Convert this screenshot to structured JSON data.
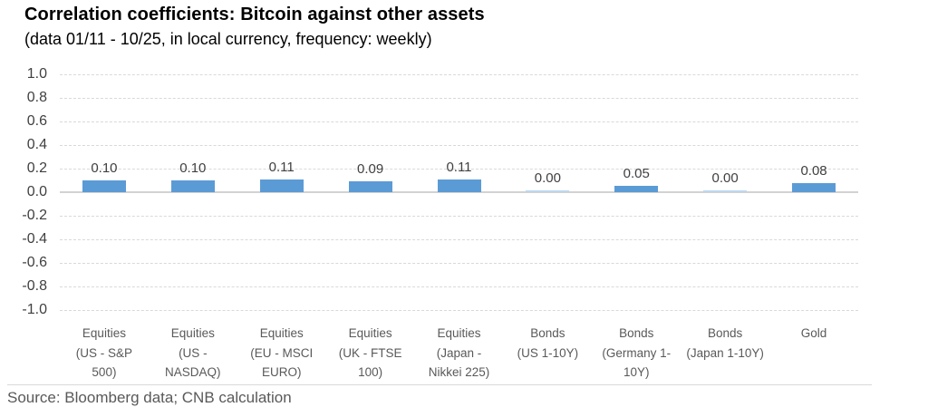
{
  "header": {
    "title": "Correlation coefficients: Bitcoin against other assets",
    "subtitle": "(data 01/11 - 10/25, in local currency, frequency: weekly)"
  },
  "chart_data": {
    "type": "bar",
    "title": "Correlation coefficients: Bitcoin against other assets",
    "subtitle": "(data 01/11 - 10/25, in local currency, frequency: weekly)",
    "categories": [
      "Equities (US - S&P 500)",
      "Equities (US - NASDAQ)",
      "Equities (EU - MSCI EURO)",
      "Equities (UK - FTSE 100)",
      "Equities (Japan - Nikkei 225)",
      "Bonds (US 1-10Y)",
      "Bonds (Germany 1-10Y)",
      "Bonds (Japan 1-10Y)",
      "Gold"
    ],
    "category_lines": [
      [
        "Equities",
        "(US - S&P",
        "500)"
      ],
      [
        "Equities",
        "(US -",
        "NASDAQ)"
      ],
      [
        "Equities",
        "(EU - MSCI",
        "EURO)"
      ],
      [
        "Equities",
        "(UK - FTSE",
        "100)"
      ],
      [
        "Equities",
        "(Japan  -",
        "Nikkei 225)"
      ],
      [
        "Bonds",
        "(US 1-10Y)"
      ],
      [
        "Bonds",
        "(Germany 1-",
        "10Y)"
      ],
      [
        "Bonds",
        "(Japan 1-10Y)"
      ],
      [
        "Gold"
      ]
    ],
    "values": [
      0.1,
      0.1,
      0.11,
      0.09,
      0.11,
      0.0,
      0.05,
      0.0,
      0.08
    ],
    "value_labels": [
      "0.10",
      "0.10",
      "0.11",
      "0.09",
      "0.11",
      "0.00",
      "0.05",
      "0.00",
      "0.08"
    ],
    "xlabel": "",
    "ylabel": "",
    "ylim": [
      -1.0,
      1.0
    ],
    "ytick_step": 0.2,
    "yticks": [
      "1.0",
      "0.8",
      "0.6",
      "0.4",
      "0.2",
      "0.0",
      "-0.2",
      "-0.4",
      "-0.6",
      "-0.8",
      "-1.0"
    ],
    "grid": "horizontal dashed",
    "legend": "none",
    "colors": {
      "bar": "#5b9bd5",
      "zero_value_bar": "#bdd7ee",
      "gridline": "#d9d9d9",
      "zero_axis_line": "#d2d2d2",
      "value_label": "#404040",
      "axis_label": "#595959"
    }
  },
  "footer": {
    "source": "Source: Bloomberg data; CNB calculation"
  }
}
